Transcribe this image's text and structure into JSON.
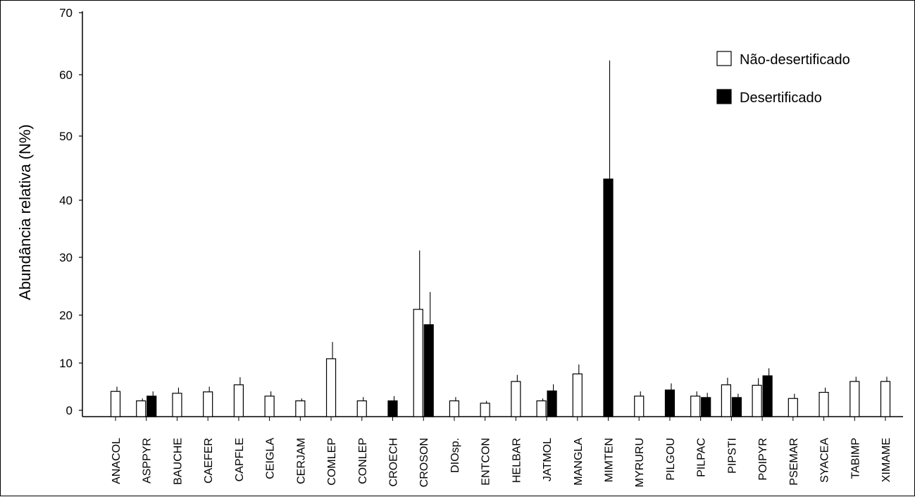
{
  "chart_data": {
    "type": "bar",
    "title": "",
    "xlabel": "",
    "ylabel": "Abundância relativa (N%)",
    "ylim": [
      0,
      70
    ],
    "yticks": [
      0,
      10,
      20,
      30,
      40,
      50,
      60,
      70
    ],
    "legend_position": "top-right",
    "grid": false,
    "categories": [
      "ANACOL",
      "ASPPYR",
      "BAUCHE",
      "CAEFER",
      "CAPFLE",
      "CEIGLA",
      "CERJAM",
      "COMLEP",
      "CONLEP",
      "CROECH",
      "CROSON",
      "DIOsp.",
      "ENTCON",
      "HELBAR",
      "JATMOL",
      "MANGLA",
      "MIMTEN",
      "MYRURU",
      "PILGOU",
      "PILPAC",
      "PIPSTI",
      "POIPYR",
      "PSEMAR",
      "SYACEA",
      "TABIMP",
      "XIMAME"
    ],
    "series": [
      {
        "name": "Não-desertificado",
        "color": "#ffffff",
        "values": [
          4.0,
          2.0,
          3.6,
          3.9,
          5.4,
          3.0,
          2.0,
          10.9,
          2.0,
          null,
          21.0,
          2.0,
          1.5,
          6.1,
          2.0,
          7.7,
          null,
          3.0,
          null,
          3.0,
          5.4,
          5.3,
          2.5,
          3.8,
          6.1,
          6.1
        ],
        "errors": [
          1.0,
          0.5,
          1.2,
          1.1,
          1.6,
          1.0,
          0.5,
          3.5,
          0.8,
          null,
          10.2,
          0.8,
          0.5,
          1.4,
          0.5,
          2.0,
          null,
          1.0,
          null,
          1.0,
          1.5,
          1.5,
          1.0,
          1.0,
          1.0,
          1.0
        ]
      },
      {
        "name": "Desertificado",
        "color": "#000000",
        "values": [
          null,
          3.0,
          null,
          null,
          null,
          null,
          null,
          null,
          null,
          2.0,
          18.0,
          null,
          null,
          null,
          4.1,
          null,
          43.3,
          null,
          4.3,
          2.7,
          2.7,
          7.3,
          null,
          null,
          null,
          null
        ],
        "errors": [
          null,
          1.0,
          null,
          null,
          null,
          null,
          null,
          null,
          null,
          1.0,
          6.0,
          null,
          null,
          null,
          1.4,
          null,
          19.0,
          null,
          1.4,
          1.0,
          0.8,
          1.6,
          null,
          null,
          null,
          null
        ]
      }
    ]
  }
}
